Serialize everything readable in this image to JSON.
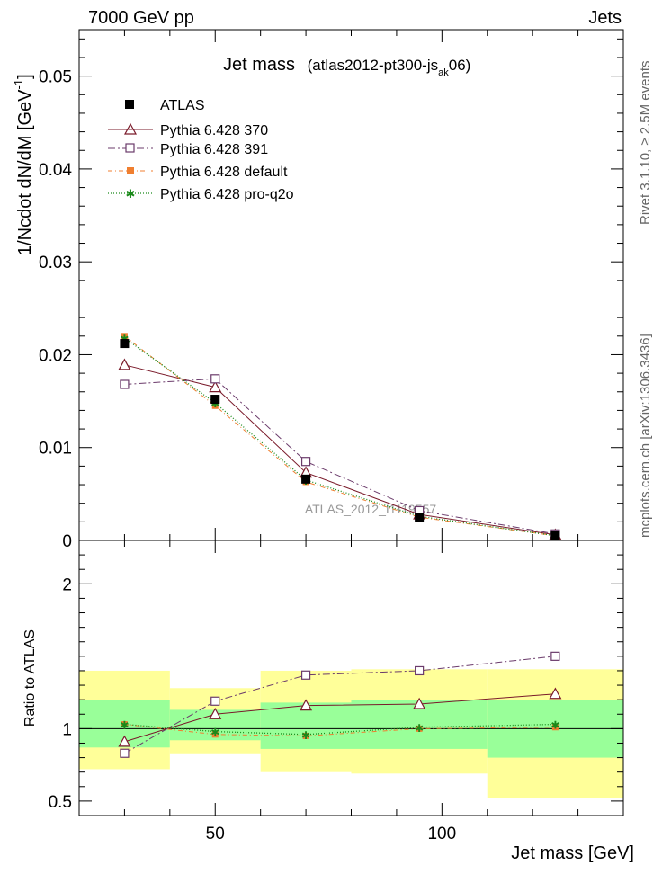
{
  "header": {
    "left": "7000 GeV pp",
    "right": "Jets"
  },
  "side_labels": {
    "rivet": "Rivet 3.1.10, ≥ 2.5M events",
    "mcplots": "mcplots.cern.ch [arXiv:1306.3436]"
  },
  "chart_data": [
    {
      "type": "line",
      "title": "Jet mass",
      "title_tag": "(atlas2012-pt300-js",
      "title_tag_sub": "ak",
      "title_tag_end": "06)",
      "ylabel": "1/Ncdot dN/dM [GeV",
      "ylabel_sup": "-1",
      "ylabel_end": "]",
      "ylim": [
        0,
        0.055
      ],
      "yticks": [
        {
          "v": 0,
          "label": "0"
        },
        {
          "v": 0.01,
          "label": "0.01"
        },
        {
          "v": 0.02,
          "label": "0.02"
        },
        {
          "v": 0.03,
          "label": "0.03"
        },
        {
          "v": 0.04,
          "label": "0.04"
        },
        {
          "v": 0.05,
          "label": "0.05"
        }
      ],
      "xlim": [
        20,
        140
      ],
      "watermark": "ATLAS_2012_I1119557",
      "legend_position": "top-left",
      "data_series": {
        "name": "ATLAS",
        "x": [
          30,
          50,
          70,
          95,
          125
        ],
        "y": [
          0.0212,
          0.0152,
          0.0066,
          0.0025,
          0.0005
        ],
        "color": "#000000"
      },
      "series": [
        {
          "name": "Pythia 6.428 370",
          "x": [
            30,
            50,
            70,
            95,
            125
          ],
          "y": [
            0.0189,
            0.0165,
            0.0073,
            0.0028,
            0.0006
          ],
          "color": "#7a1a2a",
          "marker": "triangle",
          "dash": ""
        },
        {
          "name": "Pythia 6.428 391",
          "x": [
            30,
            50,
            70,
            95,
            125
          ],
          "y": [
            0.0168,
            0.0174,
            0.0085,
            0.0032,
            0.0007
          ],
          "color": "#6b3b6b",
          "marker": "square",
          "dash": "8,3,2,3"
        },
        {
          "name": "Pythia 6.428 default",
          "x": [
            30,
            50,
            70,
            95,
            125
          ],
          "y": [
            0.022,
            0.0145,
            0.0063,
            0.0025,
            0.0005
          ],
          "color": "#f07f30",
          "marker": "filled-square",
          "dash": "5,3,1,3"
        },
        {
          "name": "Pythia 6.428 pro-q2o",
          "x": [
            30,
            50,
            70,
            95,
            125
          ],
          "y": [
            0.0218,
            0.0148,
            0.0065,
            0.0026,
            0.0005
          ],
          "color": "#1a8a1a",
          "marker": "star",
          "dash": "1,2"
        }
      ]
    },
    {
      "type": "line",
      "ylabel": "Ratio to ATLAS",
      "xlabel": "Jet mass [GeV]",
      "ylim": [
        0.4,
        2.3
      ],
      "xlim": [
        20,
        140
      ],
      "yticks": [
        {
          "v": 0.5,
          "label": "0.5"
        },
        {
          "v": 1,
          "label": "1"
        },
        {
          "v": 2,
          "label": "2"
        }
      ],
      "xticks": [
        {
          "v": 50,
          "label": "50"
        },
        {
          "v": 100,
          "label": "100"
        }
      ],
      "uncertainty_bands": [
        {
          "x0": 20,
          "x1": 40,
          "yellow": [
            0.72,
            1.4
          ],
          "green": [
            0.87,
            1.2
          ]
        },
        {
          "x0": 40,
          "x1": 60,
          "yellow": [
            0.83,
            1.28
          ],
          "green": [
            0.92,
            1.13
          ]
        },
        {
          "x0": 60,
          "x1": 80,
          "yellow": [
            0.7,
            1.4
          ],
          "green": [
            0.86,
            1.18
          ]
        },
        {
          "x0": 80,
          "x1": 110,
          "yellow": [
            0.69,
            1.41
          ],
          "green": [
            0.86,
            1.2
          ]
        },
        {
          "x0": 110,
          "x1": 140,
          "yellow": [
            0.52,
            1.41
          ],
          "green": [
            0.8,
            1.2
          ]
        }
      ],
      "series": [
        {
          "name": "Pythia 6.428 370",
          "x": [
            30,
            50,
            70,
            95,
            125
          ],
          "y": [
            0.91,
            1.1,
            1.16,
            1.17,
            1.24
          ],
          "color": "#7a1a2a",
          "marker": "triangle",
          "dash": ""
        },
        {
          "name": "Pythia 6.428 391",
          "x": [
            30,
            50,
            70,
            95,
            125
          ],
          "y": [
            0.83,
            1.19,
            1.37,
            1.4,
            1.5
          ],
          "color": "#6b3b6b",
          "marker": "square",
          "dash": "8,3,2,3"
        },
        {
          "name": "Pythia 6.428 default",
          "x": [
            30,
            50,
            70,
            95,
            125
          ],
          "y": [
            1.03,
            0.96,
            0.95,
            1.0,
            1.01
          ],
          "color": "#f07f30",
          "marker": "filled-square",
          "dash": "5,3,1,3"
        },
        {
          "name": "Pythia 6.428 pro-q2o",
          "x": [
            30,
            50,
            70,
            95,
            125
          ],
          "y": [
            1.03,
            0.98,
            0.96,
            1.01,
            1.03
          ],
          "color": "#1a8a1a",
          "marker": "star",
          "dash": "1,2"
        }
      ]
    }
  ]
}
